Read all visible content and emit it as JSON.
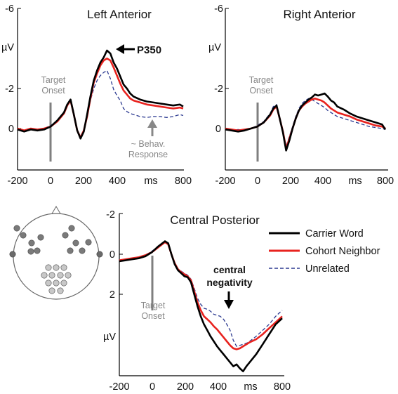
{
  "legend": {
    "items": [
      {
        "label": "Carrier Word",
        "color": "#000000",
        "style": "solid"
      },
      {
        "label": "Cohort Neighbor",
        "color": "#e8231f",
        "style": "solid"
      },
      {
        "label": "Unrelated",
        "color": "#2b3990",
        "style": "dashed"
      }
    ]
  },
  "scalp_map": {
    "electrode_groups": [
      {
        "color": "#7a7a7a",
        "count": 12
      },
      {
        "color": "#c8c8c8",
        "count": 12
      },
      {
        "color": "#6a6a6a",
        "count": 2
      }
    ]
  },
  "chart_data": [
    {
      "type": "line",
      "title": "Left Anterior",
      "x_unit": "ms",
      "y_unit": "µV",
      "y_axis_inverted": true,
      "xlim": [
        -200,
        800
      ],
      "x_ticks": [
        -200,
        0,
        200,
        400,
        800
      ],
      "y_ticks": [
        -6,
        -2,
        0
      ],
      "onset_label": [
        "Target",
        "Onset"
      ],
      "annotations": {
        "peak_label": "P350",
        "response_label": [
          "~ Behav.",
          "Response"
        ]
      },
      "series": [
        {
          "name": "Carrier Word",
          "x": [
            -200,
            -160,
            -120,
            -80,
            -40,
            0,
            40,
            80,
            100,
            120,
            140,
            160,
            180,
            200,
            220,
            240,
            260,
            280,
            300,
            320,
            340,
            360,
            380,
            400,
            420,
            440,
            460,
            480,
            500,
            540,
            580,
            620,
            660,
            700,
            740,
            780,
            800
          ],
          "y": [
            0.05,
            0.15,
            0.05,
            0.1,
            0.05,
            -0.1,
            -0.4,
            -0.8,
            -1.2,
            -1.45,
            -0.7,
            0.1,
            0.5,
            0.15,
            -0.7,
            -1.6,
            -2.4,
            -2.9,
            -3.3,
            -3.55,
            -3.9,
            -3.75,
            -3.3,
            -3.0,
            -2.6,
            -2.2,
            -2.0,
            -1.75,
            -1.6,
            -1.45,
            -1.35,
            -1.3,
            -1.25,
            -1.2,
            -1.15,
            -1.2,
            -1.1
          ]
        },
        {
          "name": "Cohort Neighbor",
          "x": [
            -200,
            -160,
            -120,
            -80,
            -40,
            0,
            40,
            80,
            100,
            120,
            140,
            160,
            180,
            200,
            220,
            240,
            260,
            280,
            300,
            320,
            340,
            360,
            380,
            400,
            420,
            440,
            460,
            480,
            500,
            540,
            580,
            620,
            660,
            700,
            740,
            780,
            800
          ],
          "y": [
            0.0,
            0.1,
            0.0,
            0.05,
            0.0,
            -0.1,
            -0.35,
            -0.75,
            -1.15,
            -1.4,
            -0.7,
            0.1,
            0.45,
            0.1,
            -0.6,
            -1.5,
            -2.3,
            -2.75,
            -3.15,
            -3.4,
            -3.5,
            -3.4,
            -3.05,
            -2.65,
            -2.25,
            -1.9,
            -1.7,
            -1.5,
            -1.4,
            -1.3,
            -1.2,
            -1.15,
            -1.1,
            -1.05,
            -1.0,
            -1.05,
            -1.0
          ]
        },
        {
          "name": "Unrelated",
          "x": [
            -200,
            -160,
            -120,
            -80,
            -40,
            0,
            40,
            80,
            100,
            120,
            140,
            160,
            180,
            200,
            220,
            240,
            260,
            280,
            300,
            320,
            340,
            360,
            380,
            400,
            420,
            440,
            460,
            480,
            500,
            540,
            580,
            620,
            660,
            700,
            740,
            780,
            800
          ],
          "y": [
            0.05,
            0.1,
            0.0,
            0.05,
            0.0,
            -0.15,
            -0.35,
            -0.8,
            -1.2,
            -1.45,
            -0.8,
            0.05,
            0.4,
            0.05,
            -0.6,
            -1.4,
            -2.0,
            -2.4,
            -2.65,
            -2.8,
            -2.9,
            -2.5,
            -1.95,
            -1.65,
            -1.4,
            -1.0,
            -0.85,
            -0.75,
            -0.7,
            -0.6,
            -0.55,
            -0.6,
            -0.6,
            -0.55,
            -0.6,
            -0.7,
            -0.65
          ]
        }
      ]
    },
    {
      "type": "line",
      "title": "Right Anterior",
      "x_unit": "ms",
      "y_unit": "µV",
      "y_axis_inverted": true,
      "xlim": [
        -200,
        800
      ],
      "x_ticks": [
        -200,
        0,
        200,
        400,
        800
      ],
      "y_ticks": [
        -6,
        -2,
        0
      ],
      "onset_label": [
        "Target",
        "Onset"
      ],
      "series": [
        {
          "name": "Carrier Word",
          "x": [
            -200,
            -160,
            -120,
            -80,
            -40,
            0,
            40,
            80,
            100,
            120,
            140,
            160,
            180,
            200,
            220,
            240,
            260,
            280,
            300,
            320,
            340,
            360,
            380,
            400,
            420,
            440,
            460,
            480,
            500,
            540,
            580,
            620,
            660,
            700,
            740,
            780,
            800
          ],
          "y": [
            0.05,
            0.1,
            0.15,
            0.1,
            0.0,
            -0.1,
            -0.3,
            -0.7,
            -1.0,
            -1.15,
            -0.5,
            0.2,
            1.1,
            0.6,
            0.0,
            -0.5,
            -0.9,
            -1.15,
            -1.3,
            -1.45,
            -1.55,
            -1.7,
            -1.65,
            -1.7,
            -1.75,
            -1.6,
            -1.4,
            -1.3,
            -1.1,
            -0.95,
            -0.75,
            -0.6,
            -0.5,
            -0.4,
            -0.3,
            -0.2,
            0.05
          ]
        },
        {
          "name": "Cohort Neighbor",
          "x": [
            -200,
            -160,
            -120,
            -80,
            -40,
            0,
            40,
            80,
            100,
            120,
            140,
            160,
            180,
            200,
            220,
            240,
            260,
            280,
            300,
            320,
            340,
            360,
            380,
            400,
            420,
            440,
            460,
            480,
            500,
            540,
            580,
            620,
            660,
            700,
            740,
            780,
            800
          ],
          "y": [
            0.0,
            0.05,
            0.1,
            0.05,
            0.0,
            -0.1,
            -0.3,
            -0.65,
            -0.95,
            -1.1,
            -0.5,
            0.15,
            1.0,
            0.5,
            0.0,
            -0.5,
            -0.9,
            -1.1,
            -1.25,
            -1.35,
            -1.45,
            -1.5,
            -1.45,
            -1.4,
            -1.3,
            -1.15,
            -1.0,
            -0.9,
            -0.8,
            -0.7,
            -0.6,
            -0.45,
            -0.35,
            -0.25,
            -0.15,
            -0.1,
            0.0
          ]
        },
        {
          "name": "Unrelated",
          "x": [
            -200,
            -160,
            -120,
            -80,
            -40,
            0,
            40,
            80,
            100,
            120,
            140,
            160,
            180,
            200,
            220,
            240,
            260,
            280,
            300,
            320,
            340,
            360,
            380,
            400,
            420,
            440,
            460,
            480,
            500,
            540,
            580,
            620,
            660,
            700,
            740,
            780,
            800
          ],
          "y": [
            0.05,
            0.1,
            0.05,
            0.1,
            0.0,
            -0.15,
            -0.35,
            -0.75,
            -1.1,
            -1.2,
            -0.55,
            0.1,
            0.9,
            0.4,
            -0.1,
            -0.6,
            -1.0,
            -1.25,
            -1.4,
            -1.5,
            -1.45,
            -1.35,
            -1.25,
            -1.15,
            -1.05,
            -0.9,
            -0.8,
            -0.7,
            -0.6,
            -0.5,
            -0.4,
            -0.3,
            -0.2,
            -0.1,
            -0.05,
            0.0,
            0.05
          ]
        }
      ]
    },
    {
      "type": "line",
      "title": "Central Posterior",
      "x_unit": "ms",
      "y_unit": "µV",
      "y_axis_inverted": true,
      "xlim": [
        -200,
        800
      ],
      "x_ticks": [
        -200,
        0,
        200,
        400,
        800
      ],
      "y_ticks": [
        -2,
        0,
        2
      ],
      "onset_label": [
        "Target",
        "Onset"
      ],
      "annotations": {
        "negativity_label": [
          "central",
          "negativity"
        ]
      },
      "series": [
        {
          "name": "Carrier Word",
          "x": [
            -200,
            -160,
            -120,
            -80,
            -40,
            0,
            40,
            80,
            100,
            120,
            140,
            160,
            180,
            200,
            220,
            240,
            260,
            280,
            300,
            320,
            340,
            360,
            380,
            400,
            420,
            440,
            460,
            480,
            500,
            520,
            540,
            560,
            580,
            600,
            640,
            680,
            720,
            760,
            800
          ],
          "y": [
            0.35,
            0.3,
            0.25,
            0.2,
            0.1,
            -0.1,
            -0.4,
            -0.65,
            -0.55,
            0.0,
            0.5,
            0.8,
            0.95,
            1.1,
            1.15,
            1.4,
            2.0,
            2.6,
            3.1,
            3.5,
            3.8,
            4.1,
            4.35,
            4.6,
            4.8,
            5.0,
            5.2,
            5.4,
            5.6,
            5.5,
            5.7,
            5.85,
            5.6,
            5.4,
            5.0,
            4.5,
            4.0,
            3.5,
            3.2
          ]
        },
        {
          "name": "Cohort Neighbor",
          "x": [
            -200,
            -160,
            -120,
            -80,
            -40,
            0,
            40,
            80,
            100,
            120,
            140,
            160,
            180,
            200,
            220,
            240,
            260,
            280,
            300,
            320,
            340,
            360,
            380,
            400,
            420,
            440,
            460,
            480,
            500,
            520,
            540,
            560,
            580,
            600,
            640,
            680,
            720,
            760,
            800
          ],
          "y": [
            0.3,
            0.25,
            0.2,
            0.15,
            0.05,
            -0.1,
            -0.35,
            -0.6,
            -0.5,
            0.0,
            0.45,
            0.75,
            0.9,
            1.0,
            1.1,
            1.3,
            1.85,
            2.4,
            2.8,
            3.1,
            3.25,
            3.4,
            3.6,
            3.75,
            3.95,
            4.15,
            4.35,
            4.55,
            4.7,
            4.75,
            4.7,
            4.6,
            4.5,
            4.4,
            4.25,
            4.0,
            3.7,
            3.4,
            3.1
          ]
        },
        {
          "name": "Unrelated",
          "x": [
            -200,
            -160,
            -120,
            -80,
            -40,
            0,
            40,
            80,
            100,
            120,
            140,
            160,
            180,
            200,
            220,
            240,
            260,
            280,
            300,
            320,
            340,
            360,
            380,
            400,
            420,
            440,
            460,
            480,
            500,
            520,
            540,
            560,
            580,
            600,
            640,
            680,
            720,
            760,
            800
          ],
          "y": [
            0.3,
            0.25,
            0.2,
            0.15,
            0.05,
            -0.15,
            -0.4,
            -0.6,
            -0.5,
            0.05,
            0.45,
            0.75,
            0.85,
            0.95,
            1.05,
            1.25,
            1.7,
            2.2,
            2.5,
            2.7,
            2.75,
            2.85,
            3.0,
            3.05,
            3.1,
            3.25,
            3.5,
            3.8,
            4.3,
            4.6,
            4.55,
            4.5,
            4.45,
            4.35,
            4.1,
            3.8,
            3.5,
            3.1,
            2.8
          ]
        }
      ]
    }
  ]
}
